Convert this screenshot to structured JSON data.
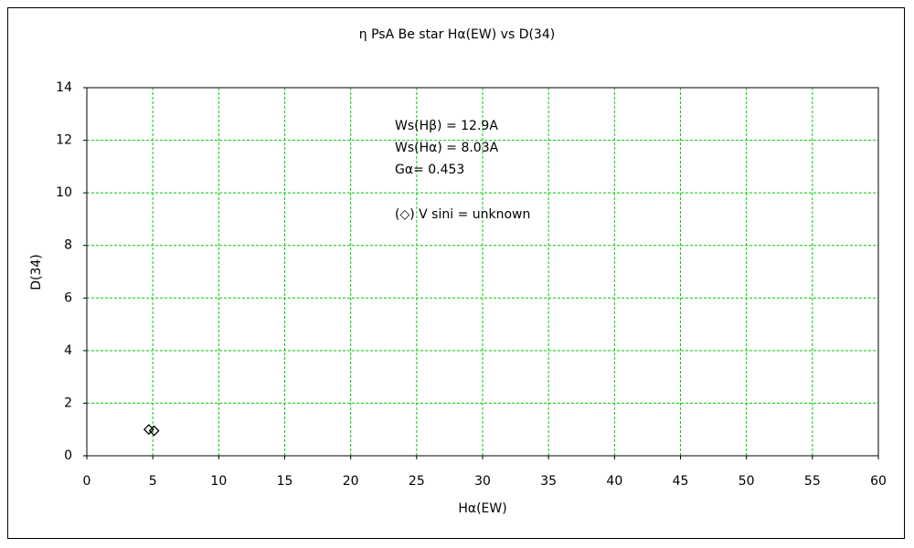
{
  "chart_data": {
    "type": "scatter",
    "title": "η  PsA    Be star    Hα(EW) vs D(34)",
    "xlabel": "Hα(EW)",
    "ylabel": "D(34)",
    "x": [
      4.7,
      5.1
    ],
    "values": [
      1.0,
      0.95
    ],
    "color": "#000000",
    "marker": "diamond",
    "xlim": [
      0,
      60
    ],
    "xticks": [
      0,
      5,
      10,
      15,
      20,
      25,
      30,
      35,
      40,
      45,
      50,
      55,
      60
    ],
    "ylim": [
      0,
      14
    ],
    "yticks": [
      0,
      2,
      4,
      6,
      8,
      10,
      12,
      14
    ],
    "grid": true,
    "grid_color": "#00cc00",
    "annotations": [
      "Ws(Hβ) = 12.9A",
      "Ws(Hα) = 8.03A",
      "Gα= 0.453",
      "(◇) V sini = unknown"
    ]
  }
}
